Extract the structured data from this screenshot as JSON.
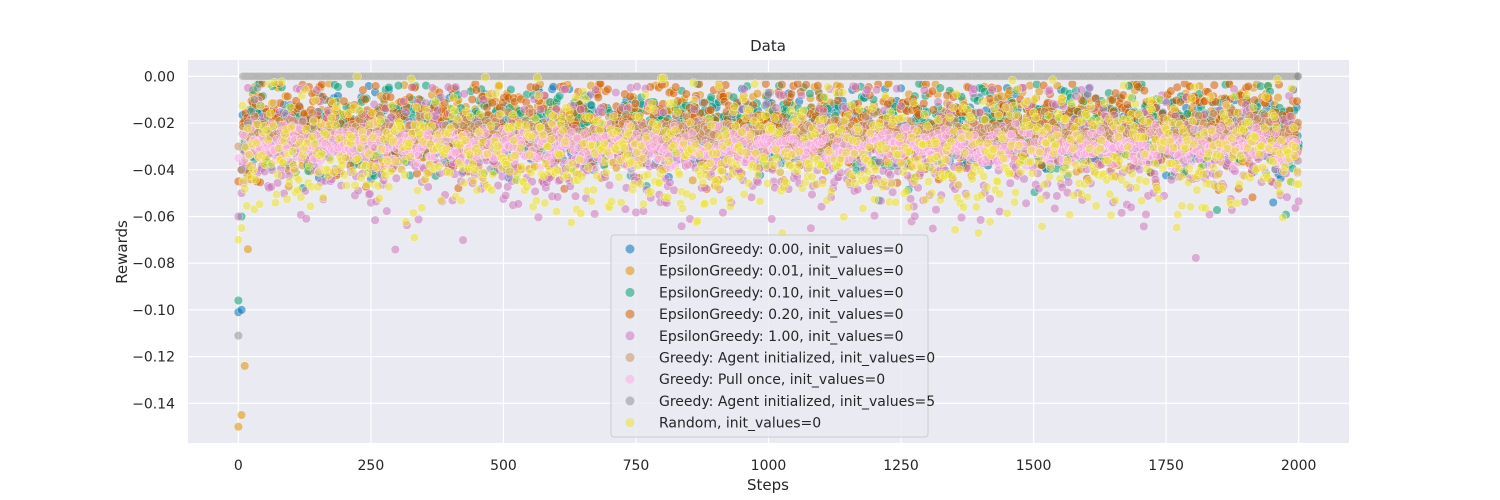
{
  "chart_data": {
    "type": "scatter",
    "title": "Data",
    "xlabel": "Steps",
    "ylabel": "Rewards",
    "xlim": [
      -95,
      2095
    ],
    "ylim": [
      -0.157,
      0.007
    ],
    "xticks": [
      0,
      250,
      500,
      750,
      1000,
      1250,
      1500,
      1750,
      2000
    ],
    "xtick_labels": [
      "0",
      "250",
      "500",
      "750",
      "1000",
      "1250",
      "1500",
      "1750",
      "2000"
    ],
    "yticks": [
      0.0,
      -0.02,
      -0.04,
      -0.06,
      -0.08,
      -0.1,
      -0.12,
      -0.14
    ],
    "ytick_labels": [
      "0.00",
      "−0.02",
      "−0.04",
      "−0.06",
      "−0.08",
      "−0.10",
      "−0.12",
      "−0.14"
    ],
    "grid": true,
    "background": "#eaeaf2",
    "legend_position": "lower-center",
    "steps": 2000,
    "series": [
      {
        "name": "EpsilonGreedy: 0.00, init_values=0",
        "color": "#0173b2",
        "mean": -0.024,
        "sd": 0.008,
        "min": -0.06,
        "max": -0.004,
        "initial": [
          -0.101,
          -0.1
        ]
      },
      {
        "name": "EpsilonGreedy: 0.01, init_values=0",
        "color": "#de8f05",
        "mean": -0.023,
        "sd": 0.009,
        "min": -0.065,
        "max": -0.003,
        "initial": [
          -0.15,
          -0.145,
          -0.124,
          -0.074
        ]
      },
      {
        "name": "EpsilonGreedy: 0.10, init_values=0",
        "color": "#029e73",
        "mean": -0.022,
        "sd": 0.009,
        "min": -0.06,
        "max": -0.003,
        "initial": [
          -0.096,
          -0.06
        ]
      },
      {
        "name": "EpsilonGreedy: 0.20, init_values=0",
        "color": "#d55e00",
        "mean": -0.021,
        "sd": 0.01,
        "min": -0.066,
        "max": -0.003,
        "initial": [
          -0.045,
          -0.04
        ]
      },
      {
        "name": "EpsilonGreedy: 1.00, init_values=0",
        "color": "#cc78bc",
        "mean": -0.032,
        "sd": 0.013,
        "min": -0.08,
        "max": -0.004,
        "initial": [
          -0.06,
          -0.05
        ]
      },
      {
        "name": "Greedy: Agent initialized, init_values=0",
        "color": "#ca9161",
        "mean": -0.025,
        "sd": 0.004,
        "min": -0.035,
        "max": -0.015,
        "initial": [
          -0.03
        ]
      },
      {
        "name": "Greedy: Pull once, init_values=0",
        "color": "#fbafe4",
        "mean": -0.03,
        "sd": 0.004,
        "min": -0.04,
        "max": -0.02,
        "initial": [
          -0.035
        ]
      },
      {
        "name": "Greedy: Agent initialized, init_values=5",
        "color": "#949494",
        "mean": 0.0,
        "sd": 0.0,
        "min": 0.0,
        "max": 0.0,
        "initial": [
          -0.111,
          -0.04,
          -0.03,
          -0.02,
          -0.015,
          -0.01,
          -0.005
        ]
      },
      {
        "name": "Random, init_values=0",
        "color": "#ece133",
        "mean": -0.032,
        "sd": 0.013,
        "min": -0.082,
        "max": 0.0,
        "initial": [
          -0.07,
          -0.065
        ]
      }
    ]
  }
}
